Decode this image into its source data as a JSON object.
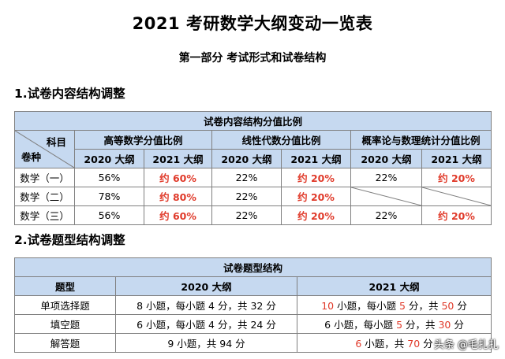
{
  "title": "2021 考研数学大纲变动一览表",
  "subtitle": "第一部分  考试形式和试卷结构",
  "section1": "1.试卷内容结构调整",
  "section2": "2.试卷题型结构调整",
  "t1": {
    "caption": "试卷内容结构分值比例",
    "corner_top": "科目",
    "corner_bottom": "卷种",
    "groups": [
      "高等数学分值比例",
      "线性代数分值比例",
      "概率论与数理统计分值比例"
    ],
    "years": [
      "2020 大纲",
      "2021 大纲"
    ],
    "rows": [
      {
        "name": "数学（一）",
        "v": [
          "56%",
          "约 60%",
          "22%",
          "约 20%",
          "22%",
          "约 20%"
        ]
      },
      {
        "name": "数学（二）",
        "v": [
          "78%",
          "约 80%",
          "22%",
          "约 20%",
          "",
          ""
        ]
      },
      {
        "name": "数学（三）",
        "v": [
          "56%",
          "约 60%",
          "22%",
          "约 20%",
          "22%",
          "约 20%"
        ]
      }
    ]
  },
  "t2": {
    "caption": "试卷题型结构",
    "headers": [
      "题型",
      "2020 大纲",
      "2021 大纲"
    ],
    "rows": [
      {
        "type": "单项选择题",
        "y2020": "8 小题，每小题 4 分，共 32 分",
        "y2021": [
          "10",
          " 小题，每小题 ",
          "5",
          " 分，共 ",
          "50",
          " 分"
        ]
      },
      {
        "type": "填空题",
        "y2020": "6 小题，每小题 4 分，共 24 分",
        "y2021": [
          "6",
          " 小题，每小题 ",
          "5",
          " 分，共 ",
          "30",
          " 分"
        ]
      },
      {
        "type": "解答题",
        "y2020": "9 小题，共 94 分",
        "y2021": [
          "6",
          " 小题，共 ",
          "70",
          " 分"
        ]
      }
    ]
  },
  "watermark": "头条 @毛扎扎"
}
